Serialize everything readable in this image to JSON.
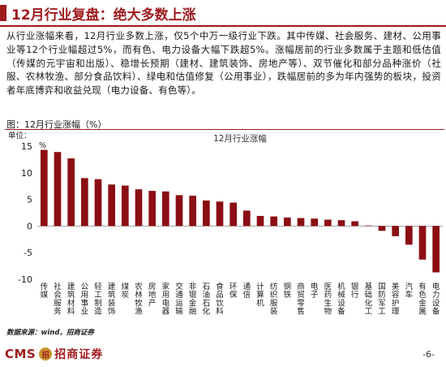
{
  "header": {
    "title": "12月行业复盘：绝大多数上涨"
  },
  "paragraph": "从行业涨幅来看，12月行业多数上涨，仅5个中万一级行业下跌。其中传媒、社会服务、建材、公用事业等12个行业幅超过5%，而有色、电力设备大幅下跌超5%。涨幅居前的行业多数属于主题和低估值（传媒的元宇宙和出版）、稳增长预期（建材、建筑装饰、房地产等）、双节催化和部分品种涨价（社服、农林牧渔、部分食品饮料）、绿电和估值修复（公用事业），跌幅居前的多为年内强势的板块，投资者年底博弈和收益兑现（电力设备、有色等）。",
  "figure": {
    "caption": "图：12月行业涨幅（%）",
    "unit_label": "单位：",
    "unit": "%"
  },
  "chart_data": {
    "type": "bar",
    "title": "12月行业涨幅",
    "categories": [
      "传媒",
      "社会服务",
      "建筑材料",
      "公用事业",
      "轻工制造",
      "建筑装饰",
      "煤炭",
      "农林牧渔",
      "房地产",
      "家用电器",
      "交通运输",
      "非银金融",
      "石油石化",
      "食品饮料",
      "环保",
      "通信",
      "计算机",
      "纺织服装",
      "钢铁",
      "商贸零售",
      "电子",
      "医药生物",
      "机械设备",
      "银行",
      "基础化工",
      "国防军工",
      "美容护理",
      "汽车",
      "有色金属",
      "电力设备"
    ],
    "values": [
      14.3,
      13.9,
      12.7,
      9.0,
      8.8,
      7.8,
      7.6,
      6.9,
      6.6,
      6.5,
      5.8,
      5.7,
      4.8,
      4.6,
      4.4,
      2.9,
      1.9,
      1.8,
      1.6,
      1.5,
      1.4,
      1.2,
      1.1,
      0.9,
      0.1,
      -0.9,
      -1.9,
      -3.5,
      -6.3,
      -8.7
    ],
    "ylim": [
      -10,
      15
    ],
    "yticks": [
      -10,
      -5,
      0,
      5,
      10,
      15
    ],
    "grid": false,
    "bar_color": "#8b0e14"
  },
  "source": "数据来源：wind，招商证券",
  "footer": {
    "logo_latin": "CMS",
    "logo_cn": "招商证券",
    "page": "-6-"
  }
}
